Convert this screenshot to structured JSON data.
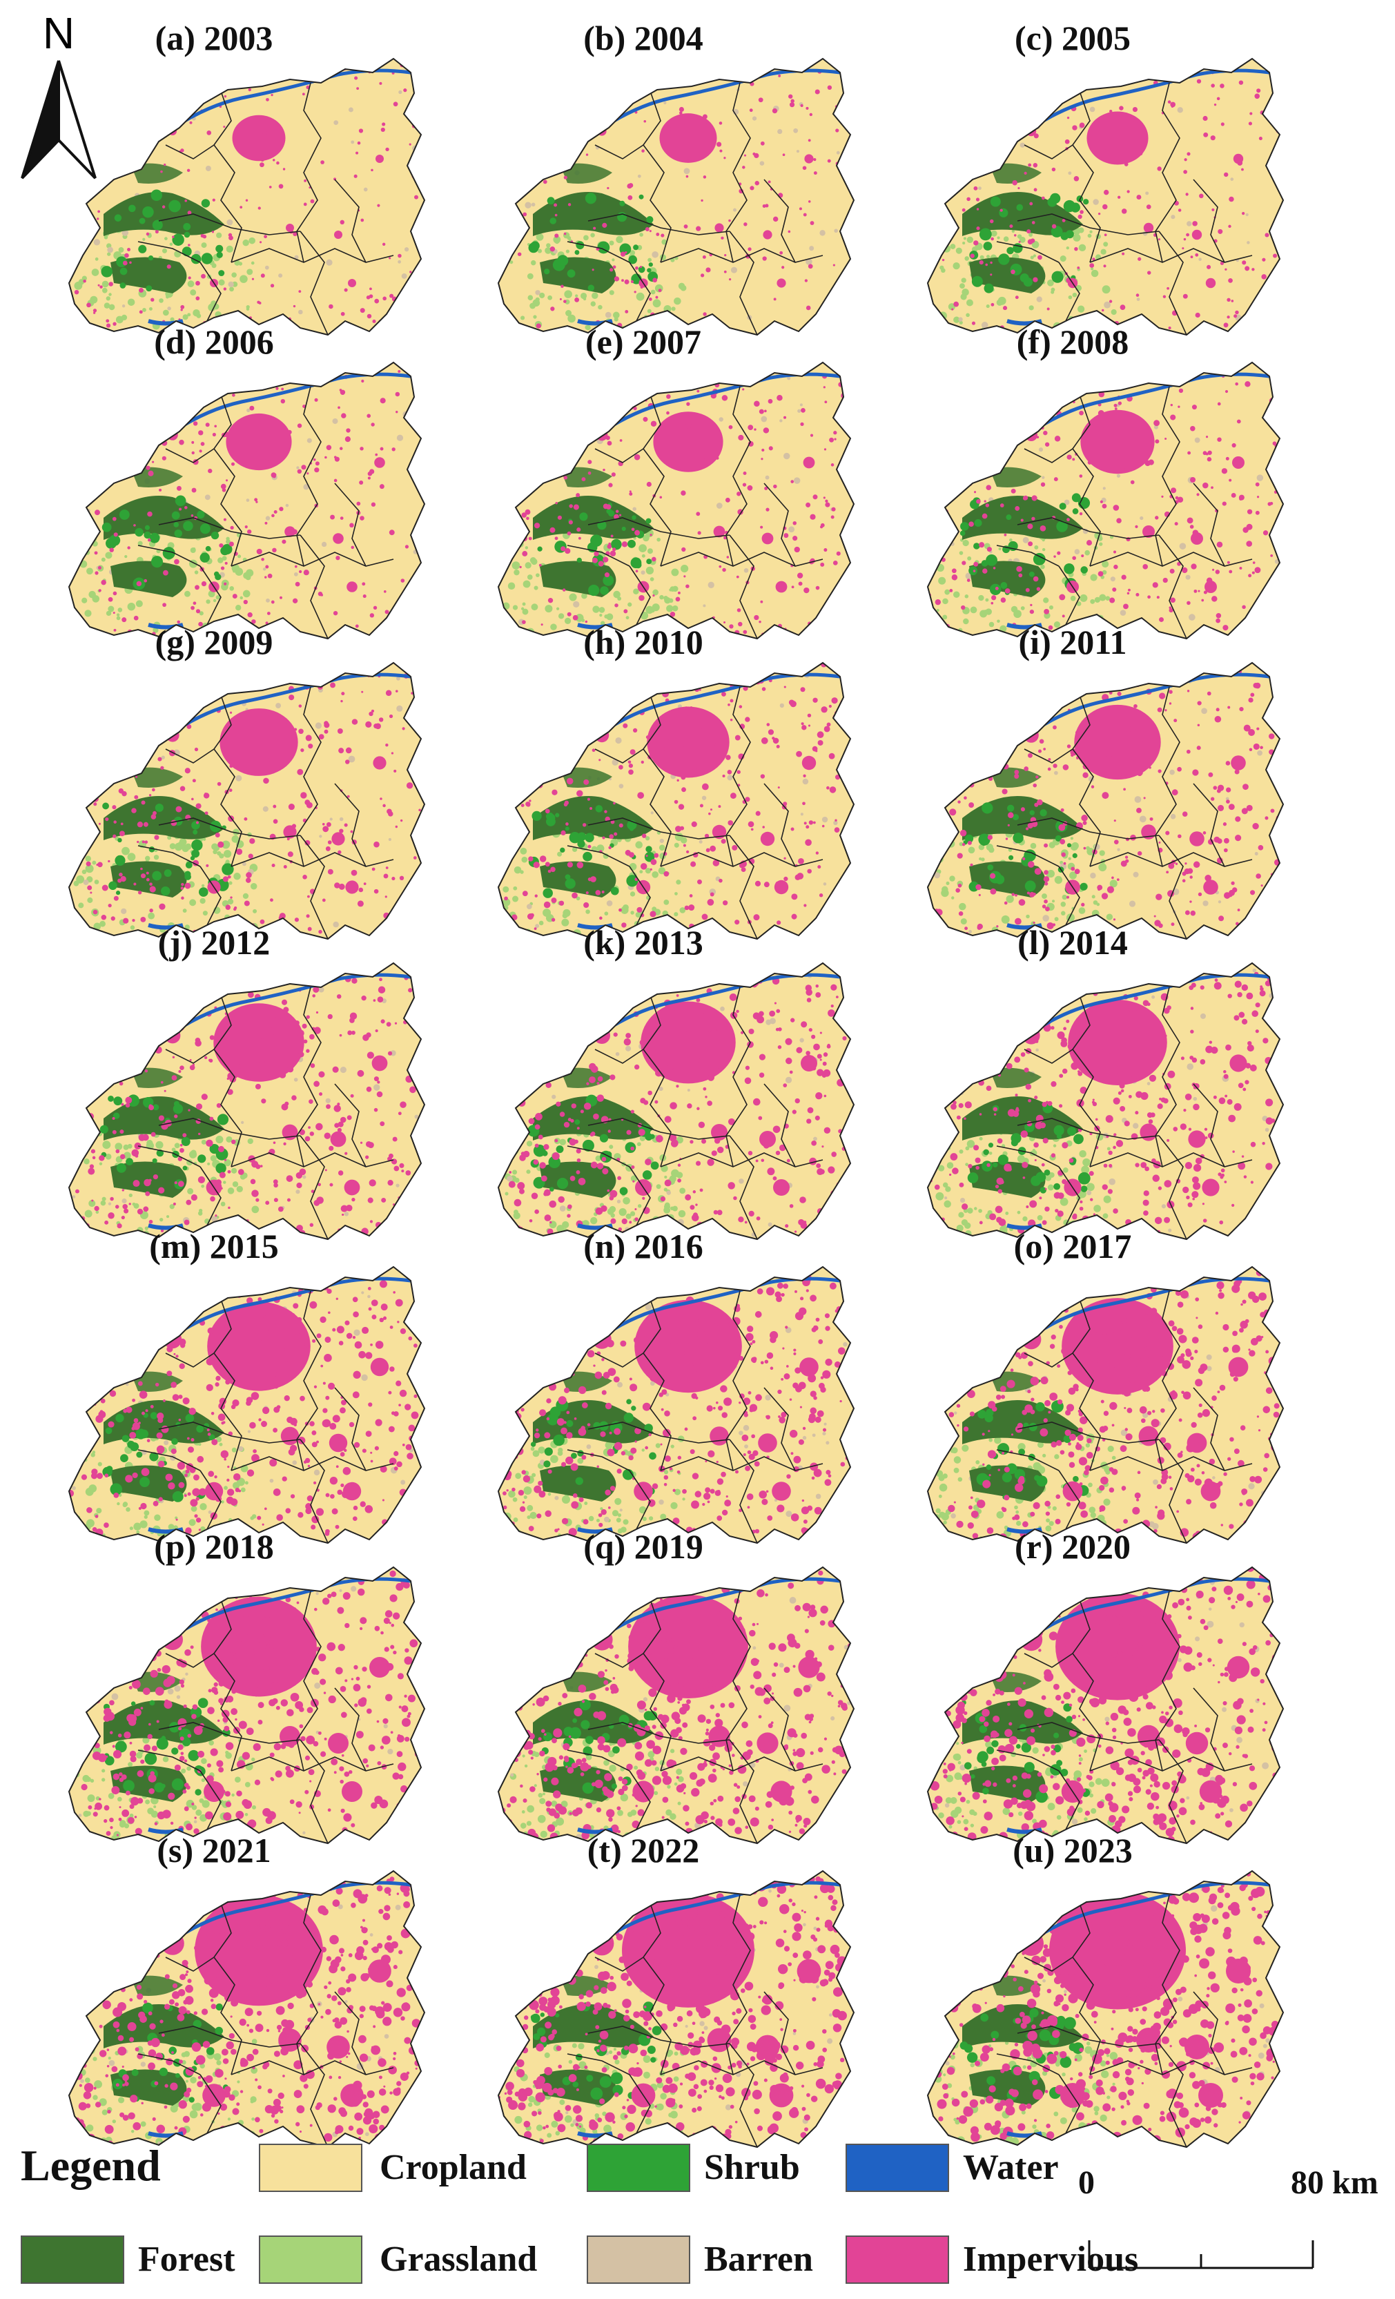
{
  "north_arrow": {
    "label": "N"
  },
  "panels": [
    {
      "label": "(a) 2003"
    },
    {
      "label": "(b) 2004"
    },
    {
      "label": "(c) 2005"
    },
    {
      "label": "(d) 2006"
    },
    {
      "label": "(e) 2007"
    },
    {
      "label": "(f) 2008"
    },
    {
      "label": "(g) 2009"
    },
    {
      "label": "(h) 2010"
    },
    {
      "label": "(i) 2011"
    },
    {
      "label": "(j) 2012"
    },
    {
      "label": "(k) 2013"
    },
    {
      "label": "(l) 2014"
    },
    {
      "label": "(m) 2015"
    },
    {
      "label": "(n) 2016"
    },
    {
      "label": "(o) 2017"
    },
    {
      "label": "(p) 2018"
    },
    {
      "label": "(q) 2019"
    },
    {
      "label": "(r) 2020"
    },
    {
      "label": "(s) 2021"
    },
    {
      "label": "(t) 2022"
    },
    {
      "label": "(u) 2023"
    }
  ],
  "legend": {
    "title": "Legend",
    "items": [
      {
        "label": "Cropland",
        "color": "#f7e19c"
      },
      {
        "label": "Shrub",
        "color": "#2ea336"
      },
      {
        "label": "Water",
        "color": "#1f62c4"
      },
      {
        "label": "Forest",
        "color": "#3e7530"
      },
      {
        "label": "Grassland",
        "color": "#a6d478"
      },
      {
        "label": "Barren",
        "color": "#d4c1a4"
      },
      {
        "label": "Impervious",
        "color": "#e24496"
      }
    ]
  },
  "scale_bar": {
    "start_label": "0",
    "end_label": "80 km"
  }
}
